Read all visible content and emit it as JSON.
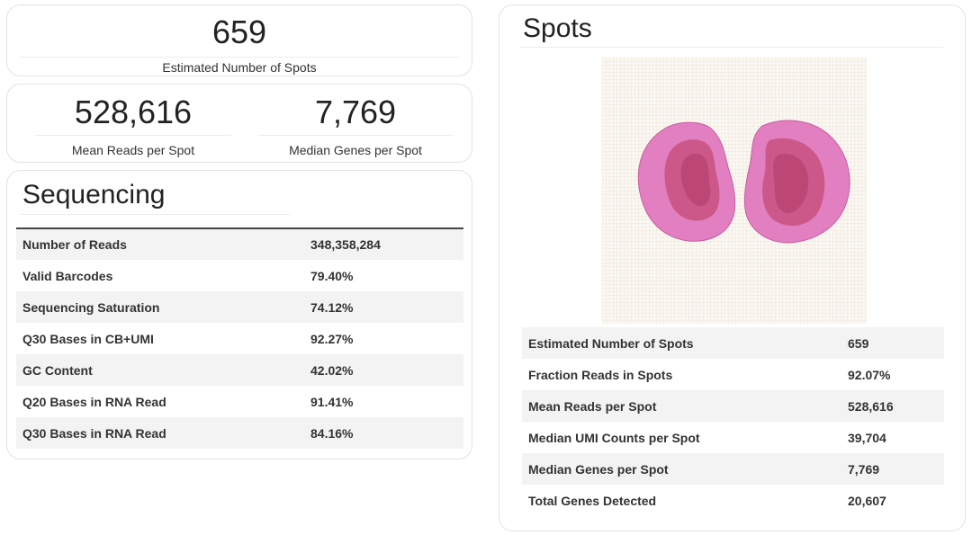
{
  "summary": {
    "estimated_spots": {
      "value": "659",
      "label": "Estimated Number of Spots"
    },
    "mean_reads": {
      "value": "528,616",
      "label": "Mean Reads per Spot"
    },
    "median_genes": {
      "value": "7,769",
      "label": "Median Genes per Spot"
    }
  },
  "sequencing": {
    "title": "Sequencing",
    "rows": [
      {
        "key": "Number of Reads",
        "value": "348,358,284"
      },
      {
        "key": "Valid Barcodes",
        "value": "79.40%"
      },
      {
        "key": "Sequencing Saturation",
        "value": "74.12%"
      },
      {
        "key": "Q30 Bases in CB+UMI",
        "value": "92.27%"
      },
      {
        "key": "GC Content",
        "value": "42.02%"
      },
      {
        "key": "Q20 Bases in RNA Read",
        "value": "91.41%"
      },
      {
        "key": "Q30 Bases in RNA Read",
        "value": "84.16%"
      }
    ]
  },
  "spots": {
    "title": "Spots",
    "image_icon": "tissue-image",
    "rows": [
      {
        "key": "Estimated Number of Spots",
        "value": "659"
      },
      {
        "key": "Fraction Reads in Spots",
        "value": "92.07%"
      },
      {
        "key": "Mean Reads per Spot",
        "value": "528,616"
      },
      {
        "key": "Median UMI Counts per Spot",
        "value": "39,704"
      },
      {
        "key": "Median Genes per Spot",
        "value": "7,769"
      },
      {
        "key": "Total Genes Detected",
        "value": "20,607"
      }
    ]
  },
  "colors": {
    "tissue_outer": "#e07bbd",
    "tissue_inner": "#c94a7f",
    "grid": "#f4efe6",
    "row_stripe": "#f3f3f3"
  }
}
